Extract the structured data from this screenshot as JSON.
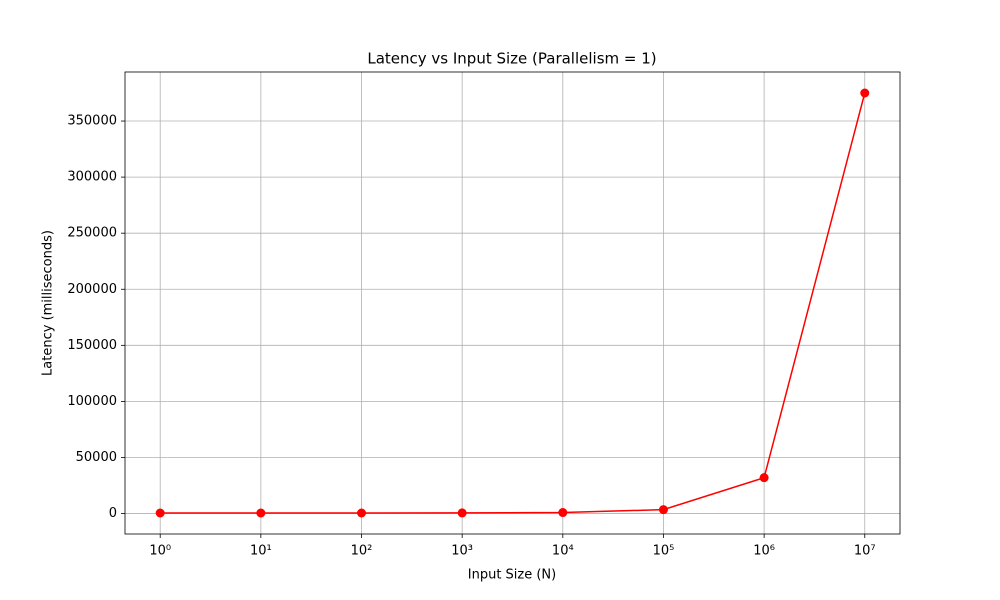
{
  "chart_data": {
    "type": "line",
    "title": "Latency vs Input Size (Parallelism = 1)",
    "x_label": "Input Size (N)",
    "y_label": "Latency (milliseconds)",
    "x": [
      1,
      10,
      100,
      1000,
      10000,
      100000,
      1000000,
      10000000
    ],
    "series": [
      {
        "color": "#ff0000",
        "values": [
          500,
          500,
          500,
          600,
          900,
          3500,
          32000,
          375000
        ]
      }
    ],
    "x_scale": "log",
    "xlim": [
      0.447,
      22387211
    ],
    "ylim": [
      -18225,
      393725
    ],
    "xticks": [
      {
        "value": 1,
        "label": "10⁰"
      },
      {
        "value": 10,
        "label": "10¹"
      },
      {
        "value": 100,
        "label": "10²"
      },
      {
        "value": 1000,
        "label": "10³"
      },
      {
        "value": 10000,
        "label": "10⁴"
      },
      {
        "value": 100000,
        "label": "10⁵"
      },
      {
        "value": 1000000,
        "label": "10⁶"
      },
      {
        "value": 10000000,
        "label": "10⁷"
      }
    ],
    "yticks": [
      0,
      50000,
      100000,
      150000,
      200000,
      250000,
      300000,
      350000
    ],
    "grid": true
  }
}
